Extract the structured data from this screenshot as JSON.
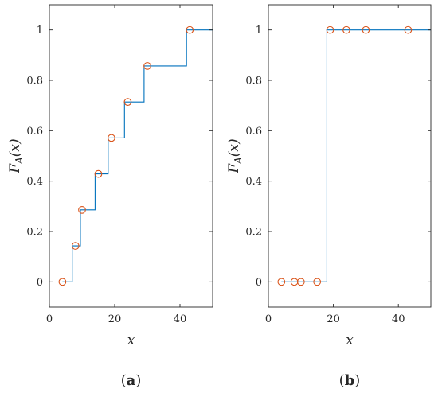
{
  "chart_data": [
    {
      "type": "step",
      "panel_label": "a",
      "xlabel": "x",
      "ylabel": "F_A(x)",
      "xlim": [
        0,
        50
      ],
      "ylim": [
        -0.1,
        1.1
      ],
      "xticks": [
        0,
        20,
        40
      ],
      "yticks": [
        0,
        0.2,
        0.4,
        0.6,
        0.8,
        1
      ],
      "ytick_labels": [
        "0",
        "0.2",
        "0.4",
        "0.6",
        "0.8",
        "1"
      ],
      "grid": false,
      "step_line": {
        "color": "#0072BD",
        "x": [
          4,
          7,
          7,
          9.5,
          9.5,
          14,
          14,
          18,
          18,
          23,
          23,
          29,
          29,
          42,
          42,
          50
        ],
        "y": [
          0,
          0,
          0.1429,
          0.1429,
          0.2857,
          0.2857,
          0.4286,
          0.4286,
          0.5714,
          0.5714,
          0.7143,
          0.7143,
          0.8571,
          0.8571,
          1,
          1
        ]
      },
      "markers": {
        "color": "#D95319",
        "x": [
          4,
          8,
          10,
          15,
          19,
          24,
          30,
          43
        ],
        "y": [
          0,
          0.1429,
          0.2857,
          0.4286,
          0.5714,
          0.7143,
          0.8571,
          1
        ]
      }
    },
    {
      "type": "step",
      "panel_label": "b",
      "xlabel": "x",
      "ylabel": "F_A(x)",
      "xlim": [
        0,
        50
      ],
      "ylim": [
        -0.1,
        1.1
      ],
      "xticks": [
        0,
        20,
        40
      ],
      "yticks": [
        0,
        0.2,
        0.4,
        0.6,
        0.8,
        1
      ],
      "ytick_labels": [
        "0",
        "0.2",
        "0.4",
        "0.6",
        "0.8",
        "1"
      ],
      "grid": false,
      "step_line": {
        "color": "#0072BD",
        "x": [
          4,
          18,
          18,
          50
        ],
        "y": [
          0,
          0,
          1,
          1
        ]
      },
      "markers": {
        "color": "#D95319",
        "x": [
          4,
          8,
          10,
          15,
          19,
          24,
          30,
          43
        ],
        "y": [
          0,
          0,
          0,
          0,
          1,
          1,
          1,
          1
        ]
      }
    }
  ]
}
